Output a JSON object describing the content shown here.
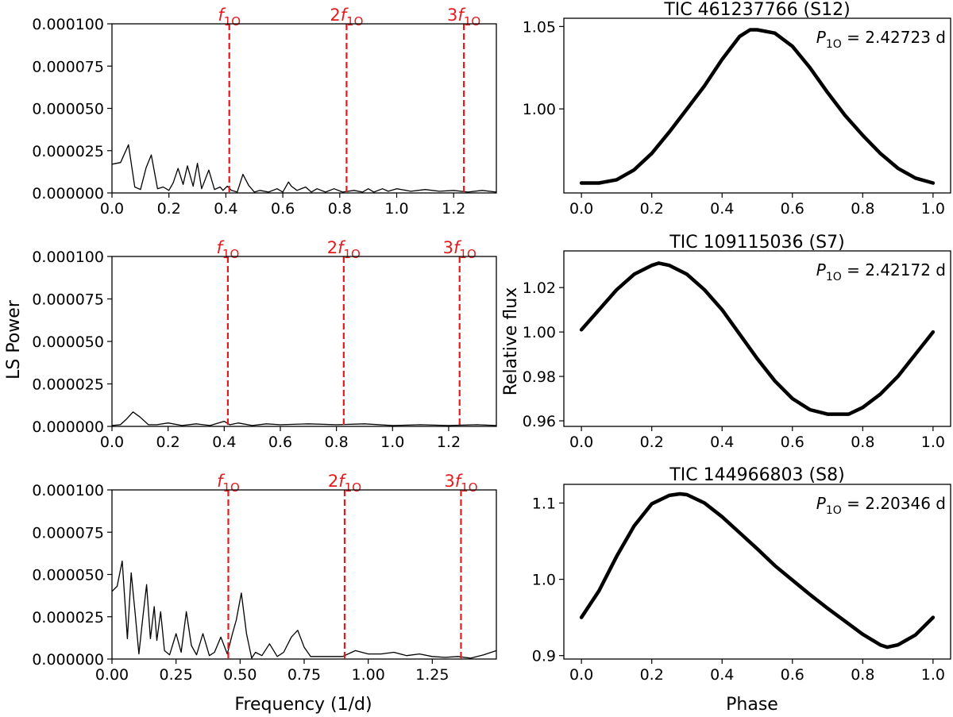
{
  "figure": {
    "left_ylabel": "LS Power",
    "left_xlabel": "Frequency (1/d)",
    "right_ylabel": "Relative flux",
    "right_xlabel": "Phase"
  },
  "chart_data": [
    {
      "type": "line",
      "panel": "periodogram",
      "row": 0,
      "xlim": [
        0,
        1.35
      ],
      "ylim": [
        0,
        0.0001
      ],
      "xticks": [
        0.0,
        0.2,
        0.4,
        0.6,
        0.8,
        1.0,
        1.2
      ],
      "xtick_labels": [
        "0.0",
        "0.2",
        "0.4",
        "0.6",
        "0.8",
        "1.0",
        "1.2"
      ],
      "yticks": [
        0,
        2.5e-05,
        5e-05,
        7.5e-05,
        0.0001
      ],
      "ytick_labels": [
        "0.000000",
        "0.000025",
        "0.000050",
        "0.000075",
        "0.000100"
      ],
      "harmonics": [
        {
          "x": 0.412,
          "prefix": "",
          "label": "f",
          "sub": "1O"
        },
        {
          "x": 0.824,
          "prefix": "2",
          "label": "f",
          "sub": "1O"
        },
        {
          "x": 1.236,
          "prefix": "3",
          "label": "f",
          "sub": "1O"
        }
      ],
      "series": [
        {
          "name": "LS power",
          "color": "#000000",
          "x": [
            0,
            0.03,
            0.058,
            0.08,
            0.1,
            0.12,
            0.138,
            0.16,
            0.18,
            0.2,
            0.215,
            0.232,
            0.25,
            0.265,
            0.285,
            0.3,
            0.315,
            0.34,
            0.36,
            0.38,
            0.39,
            0.405,
            0.42,
            0.44,
            0.46,
            0.48,
            0.5,
            0.52,
            0.55,
            0.58,
            0.6,
            0.62,
            0.63,
            0.65,
            0.68,
            0.7,
            0.72,
            0.75,
            0.78,
            0.81,
            0.85,
            0.88,
            0.9,
            0.92,
            0.95,
            0.97,
            1.0,
            1.05,
            1.1,
            1.15,
            1.2,
            1.25,
            1.3,
            1.35
          ],
          "values": [
            1.7e-05,
            1.8e-05,
            2.85e-05,
            3.5e-06,
            2e-06,
            1.5e-05,
            2.25e-05,
            2.5e-06,
            3.5e-06,
            1.5e-06,
            6e-06,
            1.45e-05,
            5e-06,
            1.6e-05,
            4e-06,
            1.75e-05,
            2.5e-06,
            1.35e-05,
            2e-06,
            3.5e-06,
            1.5e-06,
            4e-06,
            1.5e-06,
            5e-07,
            1.1e-05,
            4.5e-06,
            5e-07,
            1.5e-06,
            5e-07,
            2.5e-06,
            5e-07,
            6.5e-06,
            4e-06,
            1.5e-06,
            3.5e-06,
            5e-07,
            2.5e-06,
            5e-07,
            2.5e-06,
            5e-07,
            1.5e-06,
            5e-07,
            2.5e-06,
            5e-07,
            2.5e-06,
            1e-06,
            2.5e-06,
            1e-06,
            2e-06,
            1e-06,
            1.5e-06,
            5e-07,
            1.5e-06,
            5e-07
          ]
        }
      ]
    },
    {
      "type": "line",
      "panel": "periodogram",
      "row": 1,
      "xlim": [
        0,
        1.37
      ],
      "ylim": [
        0,
        0.0001
      ],
      "xticks": [
        0.0,
        0.2,
        0.4,
        0.6,
        0.8,
        1.0,
        1.2
      ],
      "xtick_labels": [
        "0.0",
        "0.2",
        "0.4",
        "0.6",
        "0.8",
        "1.0",
        "1.2"
      ],
      "yticks": [
        0,
        2.5e-05,
        5e-05,
        7.5e-05,
        0.0001
      ],
      "ytick_labels": [
        "0.000000",
        "0.000025",
        "0.000050",
        "0.000075",
        "0.000100"
      ],
      "harmonics": [
        {
          "x": 0.413,
          "prefix": "",
          "label": "f",
          "sub": "1O"
        },
        {
          "x": 0.826,
          "prefix": "2",
          "label": "f",
          "sub": "1O"
        },
        {
          "x": 1.239,
          "prefix": "3",
          "label": "f",
          "sub": "1O"
        }
      ],
      "series": [
        {
          "name": "LS power",
          "color": "#000000",
          "x": [
            0,
            0.03,
            0.05,
            0.075,
            0.1,
            0.13,
            0.16,
            0.2,
            0.25,
            0.3,
            0.35,
            0.39,
            0.4,
            0.42,
            0.45,
            0.5,
            0.55,
            0.6,
            0.7,
            0.8,
            0.9,
            1.0,
            1.1,
            1.2,
            1.3,
            1.37
          ],
          "values": [
            5e-07,
            1e-06,
            4e-06,
            8.5e-06,
            5.5e-06,
            1e-06,
            1e-06,
            2e-06,
            5e-07,
            1.5e-06,
            5e-07,
            2.5e-06,
            3e-06,
            1e-06,
            2e-06,
            5e-07,
            1.5e-06,
            1e-06,
            1.5e-06,
            1e-06,
            1.5e-06,
            5e-07,
            1e-06,
            5e-07,
            1e-06,
            5e-07
          ]
        }
      ]
    },
    {
      "type": "line",
      "panel": "periodogram",
      "row": 2,
      "xlim": [
        0,
        1.5
      ],
      "ylim": [
        0,
        0.0001
      ],
      "xticks": [
        0.0,
        0.25,
        0.5,
        0.75,
        1.0,
        1.25
      ],
      "xtick_labels": [
        "0.00",
        "0.25",
        "0.50",
        "0.75",
        "1.00",
        "1.25"
      ],
      "yticks": [
        0,
        2.5e-05,
        5e-05,
        7.5e-05,
        0.0001
      ],
      "ytick_labels": [
        "0.000000",
        "0.000025",
        "0.000050",
        "0.000075",
        "0.000100"
      ],
      "harmonics": [
        {
          "x": 0.454,
          "prefix": "",
          "label": "f",
          "sub": "1O"
        },
        {
          "x": 0.908,
          "prefix": "2",
          "label": "f",
          "sub": "1O"
        },
        {
          "x": 1.362,
          "prefix": "3",
          "label": "f",
          "sub": "1O"
        }
      ],
      "series": [
        {
          "name": "LS power",
          "color": "#000000",
          "x": [
            0,
            0.02,
            0.04,
            0.06,
            0.075,
            0.09,
            0.105,
            0.12,
            0.135,
            0.15,
            0.165,
            0.175,
            0.19,
            0.205,
            0.225,
            0.25,
            0.27,
            0.29,
            0.31,
            0.33,
            0.355,
            0.38,
            0.4,
            0.425,
            0.45,
            0.47,
            0.485,
            0.505,
            0.525,
            0.545,
            0.56,
            0.585,
            0.615,
            0.645,
            0.67,
            0.7,
            0.725,
            0.75,
            0.775,
            0.8,
            0.85,
            0.9,
            0.95,
            1.0,
            1.05,
            1.1,
            1.15,
            1.2,
            1.25,
            1.3,
            1.35,
            1.4,
            1.45,
            1.5
          ],
          "values": [
            4e-05,
            4.3e-05,
            5.8e-05,
            1.2e-05,
            5.1e-05,
            2.8e-05,
            3e-06,
            2.4e-05,
            4.4e-05,
            1.2e-05,
            3.1e-05,
            1.1e-05,
            2.8e-05,
            5e-06,
            2.5e-06,
            1.5e-05,
            4e-06,
            2.8e-05,
            8e-06,
            2.5e-06,
            1.5e-05,
            2e-06,
            4e-06,
            1.3e-05,
            3e-06,
            1.5e-05,
            2.3e-05,
            3.9e-05,
            1.5e-05,
            5e-07,
            4e-06,
            2e-06,
            9e-06,
            1.5e-06,
            4e-06,
            1.3e-05,
            1.7e-05,
            7e-06,
            1.5e-06,
            1.5e-06,
            1.5e-06,
            1.5e-06,
            5e-06,
            3e-06,
            3e-06,
            4e-06,
            2e-06,
            3e-06,
            1.5e-06,
            1e-06,
            1.5e-06,
            5e-07,
            2.5e-06,
            5e-06
          ]
        }
      ]
    },
    {
      "type": "scatter",
      "panel": "phased_lightcurve",
      "row": 0,
      "title": "TIC 461237766 (S12)",
      "annotation": {
        "symbol": "P",
        "sub": "1O",
        "value_text": "= 2.42723 d"
      },
      "xlim": [
        -0.05,
        1.05
      ],
      "ylim": [
        0.949,
        1.055
      ],
      "xticks": [
        0.0,
        0.2,
        0.4,
        0.6,
        0.8,
        1.0
      ],
      "xtick_labels": [
        "0.0",
        "0.2",
        "0.4",
        "0.6",
        "0.8",
        "1.0"
      ],
      "yticks": [
        1.0,
        1.05
      ],
      "ytick_labels": [
        "1.00",
        "1.05"
      ],
      "series": [
        {
          "name": "phased flux",
          "color": "#000000",
          "x": [
            0.0,
            0.05,
            0.1,
            0.15,
            0.2,
            0.25,
            0.3,
            0.35,
            0.4,
            0.45,
            0.48,
            0.5,
            0.55,
            0.6,
            0.65,
            0.7,
            0.75,
            0.8,
            0.85,
            0.9,
            0.95,
            1.0
          ],
          "values": [
            0.955,
            0.955,
            0.957,
            0.963,
            0.973,
            0.986,
            1.0,
            1.014,
            1.03,
            1.044,
            1.048,
            1.048,
            1.046,
            1.038,
            1.025,
            1.01,
            0.996,
            0.984,
            0.973,
            0.964,
            0.958,
            0.955
          ]
        }
      ]
    },
    {
      "type": "scatter",
      "panel": "phased_lightcurve",
      "row": 1,
      "title": "TIC 109115036 (S7)",
      "annotation": {
        "symbol": "P",
        "sub": "1O",
        "value_text": "= 2.42172 d"
      },
      "xlim": [
        -0.05,
        1.05
      ],
      "ylim": [
        0.9575,
        1.0365
      ],
      "xticks": [
        0.0,
        0.2,
        0.4,
        0.6,
        0.8,
        1.0
      ],
      "xtick_labels": [
        "0.0",
        "0.2",
        "0.4",
        "0.6",
        "0.8",
        "1.0"
      ],
      "yticks": [
        0.96,
        0.98,
        1.0,
        1.02
      ],
      "ytick_labels": [
        "0.96",
        "0.98",
        "1.00",
        "1.02"
      ],
      "series": [
        {
          "name": "phased flux",
          "color": "#000000",
          "x": [
            0.0,
            0.05,
            0.1,
            0.15,
            0.2,
            0.22,
            0.25,
            0.3,
            0.35,
            0.4,
            0.45,
            0.5,
            0.55,
            0.6,
            0.65,
            0.7,
            0.73,
            0.76,
            0.8,
            0.85,
            0.9,
            0.95,
            1.0
          ],
          "values": [
            1.001,
            1.01,
            1.019,
            1.026,
            1.03,
            1.031,
            1.03,
            1.026,
            1.019,
            1.01,
            0.999,
            0.988,
            0.978,
            0.97,
            0.965,
            0.963,
            0.963,
            0.963,
            0.966,
            0.972,
            0.98,
            0.99,
            1.0
          ]
        }
      ]
    },
    {
      "type": "scatter",
      "panel": "phased_lightcurve",
      "row": 2,
      "title": "TIC 144966803 (S8)",
      "annotation": {
        "symbol": "P",
        "sub": "1O",
        "value_text": "= 2.20346 d"
      },
      "xlim": [
        -0.05,
        1.05
      ],
      "ylim": [
        0.8955,
        1.1245
      ],
      "xticks": [
        0.0,
        0.2,
        0.4,
        0.6,
        0.8,
        1.0
      ],
      "xtick_labels": [
        "0.0",
        "0.2",
        "0.4",
        "0.6",
        "0.8",
        "1.0"
      ],
      "yticks": [
        0.9,
        1.0,
        1.1
      ],
      "ytick_labels": [
        "0.9",
        "1.0",
        "1.1"
      ],
      "series": [
        {
          "name": "phased flux",
          "color": "#000000",
          "x": [
            0.0,
            0.05,
            0.1,
            0.15,
            0.2,
            0.25,
            0.28,
            0.3,
            0.35,
            0.4,
            0.45,
            0.5,
            0.55,
            0.6,
            0.65,
            0.7,
            0.75,
            0.8,
            0.85,
            0.87,
            0.9,
            0.95,
            1.0
          ],
          "values": [
            0.95,
            0.985,
            1.03,
            1.07,
            1.099,
            1.11,
            1.112,
            1.111,
            1.1,
            1.082,
            1.061,
            1.04,
            1.018,
            0.999,
            0.98,
            0.962,
            0.945,
            0.928,
            0.914,
            0.911,
            0.914,
            0.927,
            0.95
          ]
        }
      ]
    }
  ]
}
